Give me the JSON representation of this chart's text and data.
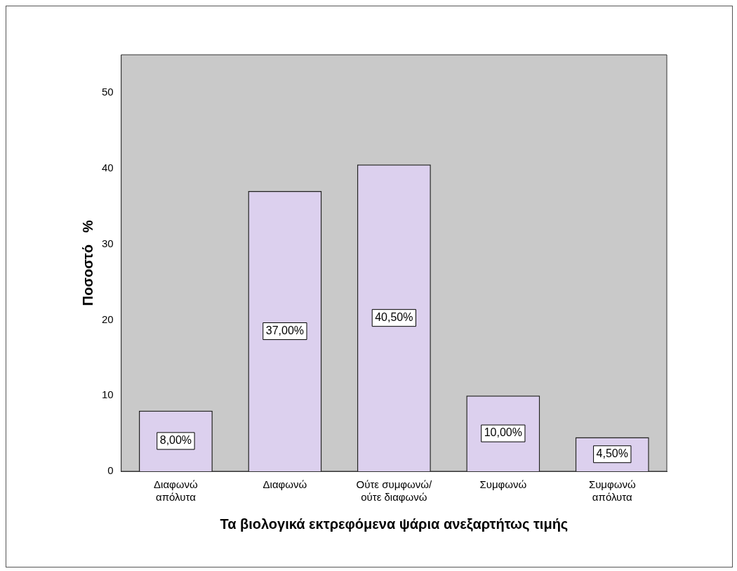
{
  "chart_data": {
    "type": "bar",
    "xlabel": "Τα βιολογικά εκτρεφόμενα ψάρια ανεξαρτήτως τιμής",
    "ylabel": "Ποσοστό   %",
    "categories": [
      "Διαφωνώ\nαπόλυτα",
      "Διαφωνώ",
      "Ούτε συμφωνώ/\nούτε διαφωνώ",
      "Συμφωνώ",
      "Συμφωνώ\nαπόλυτα"
    ],
    "values": [
      8,
      37,
      40.5,
      10,
      4.5
    ],
    "value_labels": [
      "8,00%",
      "37,00%",
      "40,50%",
      "10,00%",
      "4,50%"
    ],
    "color": "#dcd0ee",
    "ylim": [
      0,
      55
    ],
    "yticks": [
      0,
      10,
      20,
      30,
      40,
      50
    ],
    "grid": false,
    "legend": false
  }
}
